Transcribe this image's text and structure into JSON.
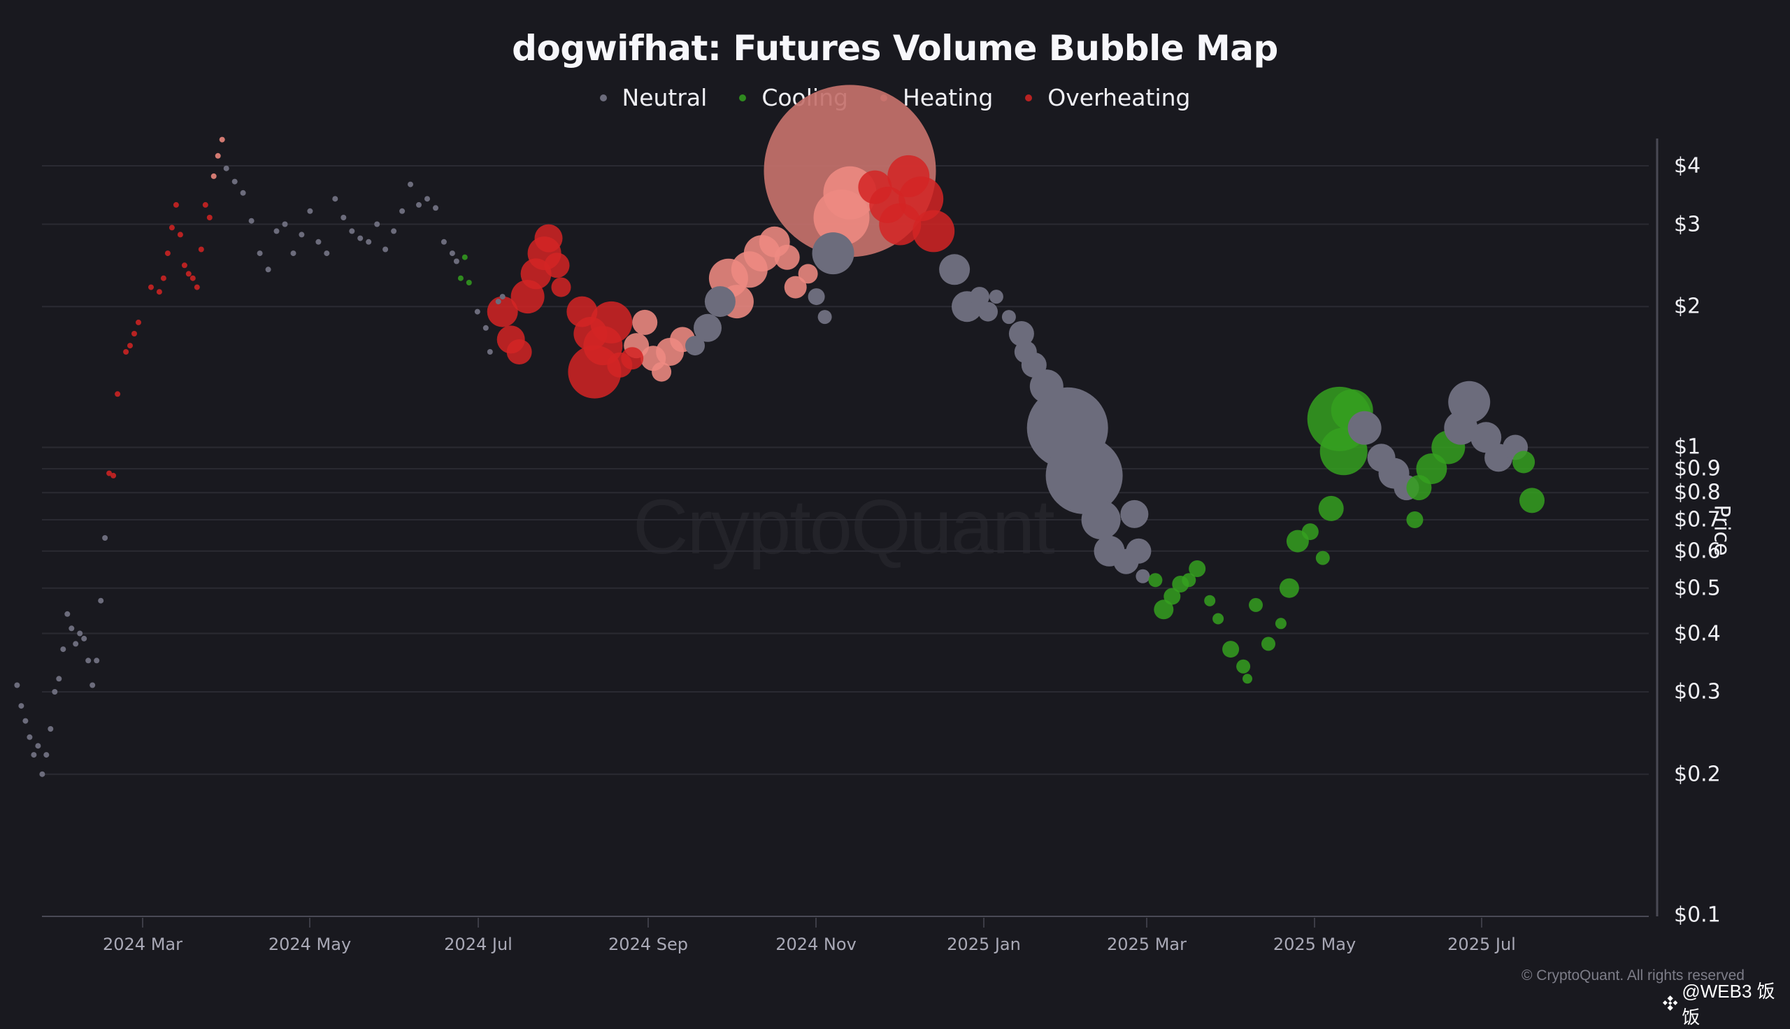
{
  "title": "dogwifhat: Futures Volume Bubble Map",
  "legend": [
    {
      "label": "Neutral",
      "color": "#6c6c7c"
    },
    {
      "label": "Cooling",
      "color": "#2f8a1f"
    },
    {
      "label": "Heating",
      "color": "#e8837c"
    },
    {
      "label": "Overheating",
      "color": "#b82222"
    }
  ],
  "watermark": "CryptoQuant",
  "copyright": "© CryptoQuant. All rights reserved",
  "credit": "@WEB3 饭饭",
  "y_axis_title": "Price",
  "x_ticks": [
    {
      "label": "2024 Mar",
      "x": 204
    },
    {
      "label": "2024 May",
      "x": 443
    },
    {
      "label": "2024 Jul",
      "x": 684
    },
    {
      "label": "2024 Sep",
      "x": 927
    },
    {
      "label": "2024 Nov",
      "x": 1167
    },
    {
      "label": "2025 Jan",
      "x": 1407
    },
    {
      "label": "2025 Mar",
      "x": 1640
    },
    {
      "label": "2025 May",
      "x": 1880
    },
    {
      "label": "2025 Jul",
      "x": 2119
    }
  ],
  "y_ticks": [
    "$4",
    "$3",
    "$2",
    "$1",
    "$0.9",
    "$0.8",
    "$0.7",
    "$0.6",
    "$0.5",
    "$0.4",
    "$0.3",
    "$0.2",
    "$0.1"
  ],
  "chart_data": {
    "type": "scatter",
    "title": "dogwifhat: Futures Volume Bubble Map",
    "xlabel": "",
    "ylabel": "Price",
    "y_scale": "log",
    "ylim": [
      0.1,
      4.5
    ],
    "x_range": [
      "2024-01",
      "2025-08"
    ],
    "legend_position": "top",
    "grid": true,
    "categories": [
      "Neutral",
      "Cooling",
      "Heating",
      "Overheating"
    ],
    "y_tick_values": [
      4,
      3,
      2,
      1,
      0.9,
      0.8,
      0.7,
      0.6,
      0.5,
      0.4,
      0.3,
      0.2,
      0.1
    ],
    "x_tick_labels": [
      "2024 Mar",
      "2024 May",
      "2024 Jul",
      "2024 Sep",
      "2024 Nov",
      "2025 Jan",
      "2025 Mar",
      "2025 May",
      "2025 Jul"
    ],
    "points_note": "each point: [months since 2024-03-01, price USD, relative bubble radius px, category]",
    "points": [
      [
        -1.5,
        0.31,
        4,
        "Neutral"
      ],
      [
        -1.45,
        0.28,
        4,
        "Neutral"
      ],
      [
        -1.4,
        0.26,
        4,
        "Neutral"
      ],
      [
        -1.35,
        0.24,
        4,
        "Neutral"
      ],
      [
        -1.3,
        0.22,
        4,
        "Neutral"
      ],
      [
        -1.25,
        0.23,
        4,
        "Neutral"
      ],
      [
        -1.2,
        0.2,
        4,
        "Neutral"
      ],
      [
        -1.15,
        0.22,
        4,
        "Neutral"
      ],
      [
        -1.1,
        0.25,
        4,
        "Neutral"
      ],
      [
        -1.05,
        0.3,
        4,
        "Neutral"
      ],
      [
        -1.0,
        0.32,
        4,
        "Neutral"
      ],
      [
        -0.95,
        0.37,
        4,
        "Neutral"
      ],
      [
        -0.9,
        0.44,
        4,
        "Neutral"
      ],
      [
        -0.85,
        0.41,
        4,
        "Neutral"
      ],
      [
        -0.8,
        0.38,
        4,
        "Neutral"
      ],
      [
        -0.75,
        0.4,
        4,
        "Neutral"
      ],
      [
        -0.7,
        0.39,
        4,
        "Neutral"
      ],
      [
        -0.65,
        0.35,
        4,
        "Neutral"
      ],
      [
        -0.6,
        0.31,
        4,
        "Neutral"
      ],
      [
        -0.55,
        0.35,
        4,
        "Neutral"
      ],
      [
        -0.5,
        0.47,
        4,
        "Neutral"
      ],
      [
        -0.45,
        0.64,
        4,
        "Neutral"
      ],
      [
        -0.4,
        0.88,
        4,
        "Overheating"
      ],
      [
        -0.35,
        0.87,
        4,
        "Overheating"
      ],
      [
        -0.3,
        1.3,
        4,
        "Overheating"
      ],
      [
        -0.2,
        1.6,
        4,
        "Overheating"
      ],
      [
        -0.15,
        1.65,
        4,
        "Overheating"
      ],
      [
        -0.1,
        1.75,
        4,
        "Overheating"
      ],
      [
        -0.05,
        1.85,
        4,
        "Overheating"
      ],
      [
        0.1,
        2.2,
        4,
        "Overheating"
      ],
      [
        0.2,
        2.15,
        4,
        "Overheating"
      ],
      [
        0.25,
        2.3,
        4,
        "Overheating"
      ],
      [
        0.3,
        2.6,
        4,
        "Overheating"
      ],
      [
        0.35,
        2.95,
        4,
        "Overheating"
      ],
      [
        0.4,
        3.3,
        4,
        "Overheating"
      ],
      [
        0.45,
        2.85,
        4,
        "Overheating"
      ],
      [
        0.5,
        2.45,
        4,
        "Overheating"
      ],
      [
        0.55,
        2.35,
        4,
        "Overheating"
      ],
      [
        0.6,
        2.3,
        4,
        "Overheating"
      ],
      [
        0.65,
        2.2,
        4,
        "Overheating"
      ],
      [
        0.7,
        2.65,
        4,
        "Overheating"
      ],
      [
        0.75,
        3.3,
        4,
        "Overheating"
      ],
      [
        0.8,
        3.1,
        4,
        "Overheating"
      ],
      [
        0.85,
        3.8,
        4,
        "Heating"
      ],
      [
        0.9,
        4.2,
        4,
        "Heating"
      ],
      [
        0.95,
        4.55,
        4,
        "Heating"
      ],
      [
        1.0,
        3.95,
        4,
        "Neutral"
      ],
      [
        1.1,
        3.7,
        4,
        "Neutral"
      ],
      [
        1.2,
        3.5,
        4,
        "Neutral"
      ],
      [
        1.3,
        3.05,
        4,
        "Neutral"
      ],
      [
        1.4,
        2.6,
        4,
        "Neutral"
      ],
      [
        1.5,
        2.4,
        4,
        "Neutral"
      ],
      [
        1.6,
        2.9,
        4,
        "Neutral"
      ],
      [
        1.7,
        3.0,
        4,
        "Neutral"
      ],
      [
        1.8,
        2.6,
        4,
        "Neutral"
      ],
      [
        1.9,
        2.85,
        4,
        "Neutral"
      ],
      [
        2.0,
        3.2,
        4,
        "Neutral"
      ],
      [
        2.1,
        2.75,
        4,
        "Neutral"
      ],
      [
        2.2,
        2.6,
        4,
        "Neutral"
      ],
      [
        2.3,
        3.4,
        4,
        "Neutral"
      ],
      [
        2.4,
        3.1,
        4,
        "Neutral"
      ],
      [
        2.5,
        2.9,
        4,
        "Neutral"
      ],
      [
        2.6,
        2.8,
        4,
        "Neutral"
      ],
      [
        2.7,
        2.75,
        4,
        "Neutral"
      ],
      [
        2.8,
        3.0,
        4,
        "Neutral"
      ],
      [
        2.9,
        2.65,
        4,
        "Neutral"
      ],
      [
        3.0,
        2.9,
        4,
        "Neutral"
      ],
      [
        3.1,
        3.2,
        4,
        "Neutral"
      ],
      [
        3.2,
        3.65,
        4,
        "Neutral"
      ],
      [
        3.3,
        3.3,
        4,
        "Neutral"
      ],
      [
        3.4,
        3.4,
        4,
        "Neutral"
      ],
      [
        3.5,
        3.25,
        4,
        "Neutral"
      ],
      [
        3.6,
        2.75,
        4,
        "Neutral"
      ],
      [
        3.7,
        2.6,
        4,
        "Neutral"
      ],
      [
        3.75,
        2.5,
        4,
        "Neutral"
      ],
      [
        3.8,
        2.3,
        4,
        "Cooling"
      ],
      [
        3.85,
        2.55,
        4,
        "Cooling"
      ],
      [
        3.9,
        2.25,
        4,
        "Cooling"
      ],
      [
        4.0,
        1.95,
        4,
        "Neutral"
      ],
      [
        4.1,
        1.8,
        4,
        "Neutral"
      ],
      [
        4.15,
        1.6,
        4,
        "Neutral"
      ],
      [
        4.25,
        2.05,
        4,
        "Neutral"
      ],
      [
        4.3,
        2.1,
        4,
        "Neutral"
      ],
      [
        4.3,
        1.95,
        22,
        "Overheating"
      ],
      [
        4.4,
        1.7,
        20,
        "Overheating"
      ],
      [
        4.5,
        1.6,
        18,
        "Overheating"
      ],
      [
        4.6,
        2.1,
        24,
        "Overheating"
      ],
      [
        4.7,
        2.35,
        22,
        "Overheating"
      ],
      [
        4.8,
        2.6,
        24,
        "Overheating"
      ],
      [
        4.85,
        2.8,
        20,
        "Overheating"
      ],
      [
        4.95,
        2.45,
        18,
        "Overheating"
      ],
      [
        5.0,
        2.2,
        14,
        "Overheating"
      ],
      [
        5.25,
        1.95,
        22,
        "Overheating"
      ],
      [
        5.35,
        1.75,
        24,
        "Overheating"
      ],
      [
        5.4,
        1.45,
        38,
        "Overheating"
      ],
      [
        5.5,
        1.65,
        28,
        "Overheating"
      ],
      [
        5.6,
        1.85,
        30,
        "Overheating"
      ],
      [
        5.7,
        1.5,
        18,
        "Overheating"
      ],
      [
        5.85,
        1.55,
        16,
        "Overheating"
      ],
      [
        5.9,
        1.65,
        18,
        "Heating"
      ],
      [
        6.0,
        1.85,
        18,
        "Heating"
      ],
      [
        6.1,
        1.55,
        18,
        "Heating"
      ],
      [
        6.2,
        1.45,
        14,
        "Heating"
      ],
      [
        6.3,
        1.6,
        20,
        "Heating"
      ],
      [
        6.45,
        1.7,
        18,
        "Heating"
      ],
      [
        6.6,
        1.65,
        14,
        "Neutral"
      ],
      [
        6.75,
        1.8,
        20,
        "Neutral"
      ],
      [
        6.9,
        2.05,
        22,
        "Neutral"
      ],
      [
        7.0,
        2.3,
        28,
        "Heating"
      ],
      [
        7.1,
        2.05,
        24,
        "Heating"
      ],
      [
        7.25,
        2.4,
        26,
        "Heating"
      ],
      [
        7.4,
        2.6,
        26,
        "Heating"
      ],
      [
        7.55,
        2.75,
        22,
        "Heating"
      ],
      [
        7.7,
        2.55,
        18,
        "Heating"
      ],
      [
        7.8,
        2.2,
        16,
        "Heating"
      ],
      [
        7.95,
        2.35,
        14,
        "Heating"
      ],
      [
        8.05,
        2.1,
        12,
        "Neutral"
      ],
      [
        8.15,
        1.9,
        10,
        "Neutral"
      ],
      [
        8.25,
        2.6,
        30,
        "Neutral"
      ],
      [
        8.35,
        3.1,
        40,
        "Heating"
      ],
      [
        8.45,
        3.5,
        38,
        "Heating"
      ],
      [
        8.45,
        3.9,
        123,
        "Heating"
      ],
      [
        8.75,
        3.6,
        24,
        "Overheating"
      ],
      [
        8.9,
        3.3,
        26,
        "Overheating"
      ],
      [
        9.05,
        3.0,
        30,
        "Overheating"
      ],
      [
        9.15,
        3.8,
        30,
        "Overheating"
      ],
      [
        9.3,
        3.4,
        32,
        "Overheating"
      ],
      [
        9.45,
        2.9,
        30,
        "Overheating"
      ],
      [
        9.7,
        2.4,
        22,
        "Neutral"
      ],
      [
        9.85,
        2.0,
        22,
        "Neutral"
      ],
      [
        10.0,
        2.1,
        14,
        "Neutral"
      ],
      [
        10.1,
        1.95,
        14,
        "Neutral"
      ],
      [
        10.2,
        2.1,
        10,
        "Neutral"
      ],
      [
        10.35,
        1.9,
        10,
        "Neutral"
      ],
      [
        10.5,
        1.75,
        18,
        "Neutral"
      ],
      [
        10.55,
        1.6,
        16,
        "Neutral"
      ],
      [
        10.65,
        1.5,
        18,
        "Neutral"
      ],
      [
        10.8,
        1.35,
        24,
        "Neutral"
      ],
      [
        11.05,
        1.1,
        58,
        "Neutral"
      ],
      [
        11.25,
        0.87,
        55,
        "Neutral"
      ],
      [
        11.45,
        0.7,
        28,
        "Neutral"
      ],
      [
        11.55,
        0.6,
        22,
        "Neutral"
      ],
      [
        11.75,
        0.57,
        18,
        "Neutral"
      ],
      [
        11.85,
        0.72,
        20,
        "Neutral"
      ],
      [
        11.9,
        0.6,
        18,
        "Neutral"
      ],
      [
        11.95,
        0.53,
        10,
        "Neutral"
      ],
      [
        12.1,
        0.52,
        10,
        "Cooling"
      ],
      [
        12.2,
        0.45,
        14,
        "Cooling"
      ],
      [
        12.3,
        0.48,
        12,
        "Cooling"
      ],
      [
        12.4,
        0.51,
        12,
        "Cooling"
      ],
      [
        12.5,
        0.52,
        10,
        "Cooling"
      ],
      [
        12.6,
        0.55,
        12,
        "Cooling"
      ],
      [
        12.75,
        0.47,
        8,
        "Cooling"
      ],
      [
        12.85,
        0.43,
        8,
        "Cooling"
      ],
      [
        13.0,
        0.37,
        12,
        "Cooling"
      ],
      [
        13.15,
        0.34,
        10,
        "Cooling"
      ],
      [
        13.2,
        0.32,
        7,
        "Cooling"
      ],
      [
        13.3,
        0.46,
        10,
        "Cooling"
      ],
      [
        13.45,
        0.38,
        10,
        "Cooling"
      ],
      [
        13.6,
        0.42,
        8,
        "Cooling"
      ],
      [
        13.7,
        0.5,
        14,
        "Cooling"
      ],
      [
        13.8,
        0.63,
        16,
        "Cooling"
      ],
      [
        13.95,
        0.66,
        12,
        "Cooling"
      ],
      [
        14.1,
        0.58,
        10,
        "Cooling"
      ],
      [
        14.2,
        0.74,
        18,
        "Cooling"
      ],
      [
        14.3,
        1.15,
        46,
        "Cooling"
      ],
      [
        14.35,
        0.98,
        34,
        "Cooling"
      ],
      [
        14.45,
        1.2,
        30,
        "Cooling"
      ],
      [
        14.6,
        1.1,
        24,
        "Neutral"
      ],
      [
        14.8,
        0.95,
        20,
        "Neutral"
      ],
      [
        14.95,
        0.88,
        22,
        "Neutral"
      ],
      [
        15.1,
        0.82,
        18,
        "Neutral"
      ],
      [
        15.2,
        0.7,
        12,
        "Cooling"
      ],
      [
        15.25,
        0.82,
        18,
        "Cooling"
      ],
      [
        15.4,
        0.9,
        22,
        "Cooling"
      ],
      [
        15.6,
        1.0,
        24,
        "Cooling"
      ],
      [
        15.75,
        1.1,
        24,
        "Neutral"
      ],
      [
        15.85,
        1.25,
        30,
        "Neutral"
      ],
      [
        16.05,
        1.05,
        22,
        "Neutral"
      ],
      [
        16.2,
        0.95,
        20,
        "Neutral"
      ],
      [
        16.4,
        1.0,
        18,
        "Neutral"
      ],
      [
        16.5,
        0.93,
        16,
        "Cooling"
      ],
      [
        16.6,
        0.77,
        18,
        "Cooling"
      ]
    ]
  }
}
